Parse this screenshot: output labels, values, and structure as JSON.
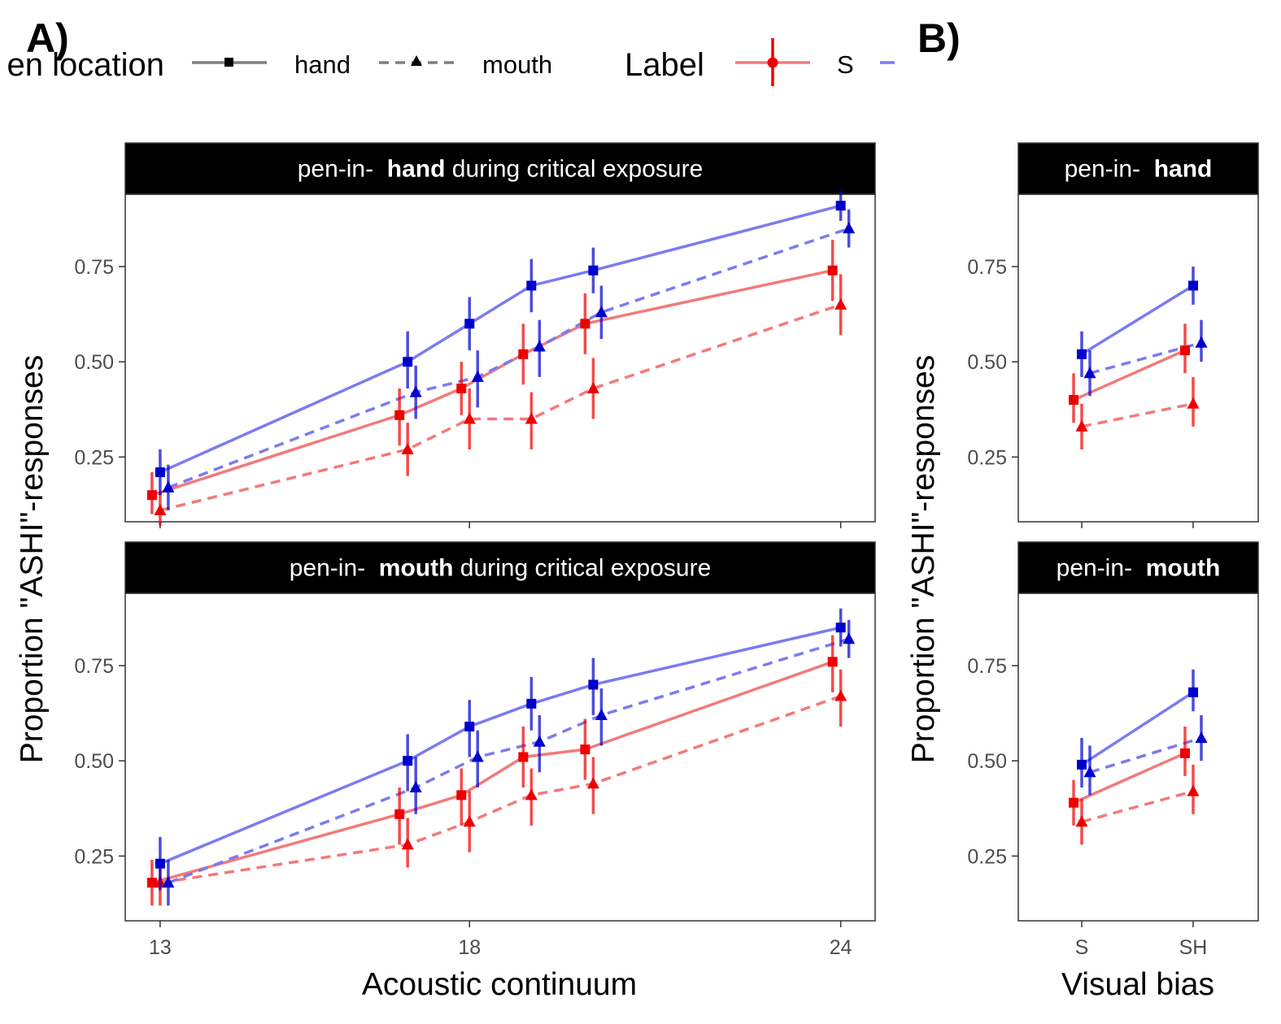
{
  "figure": {
    "panel_a_tag": "A)",
    "panel_b_tag": "B)"
  },
  "legend": {
    "pen_location": {
      "title": "en location",
      "items": [
        {
          "label": "hand",
          "shape": "square",
          "linetype": "solid"
        },
        {
          "label": "mouth",
          "shape": "triangle",
          "linetype": "dashed"
        }
      ]
    },
    "label": {
      "title": "Label",
      "items": [
        {
          "label": "S",
          "color": "#f37a7a"
        },
        {
          "label": "",
          "color": "#7b7bf1"
        }
      ]
    }
  },
  "colors": {
    "S_line": "#f37a7a",
    "SH_line": "#7b7bf1",
    "S_point": "#ee0000",
    "SH_point": "#0000cc",
    "strip_bg": "#000000",
    "strip_text": "#ffffff"
  },
  "chart_data": [
    {
      "id": "A-hand",
      "type": "line",
      "strip": {
        "prefix": "pen-in-",
        "bold": "hand",
        "suffix": " during critical exposure"
      },
      "xlabel": "Acoustic continuum",
      "ylabel": "Proportion \"ASHI\"-responses",
      "x_ticks": [
        13,
        18,
        24
      ],
      "y_ticks": [
        "0.25",
        "0.50",
        "0.75"
      ],
      "ylim": [
        0.08,
        0.94
      ],
      "series": [
        {
          "label": "S",
          "pen": "hand",
          "points": [
            {
              "x": 13,
              "y": 0.15,
              "lo": 0.1,
              "hi": 0.21
            },
            {
              "x": 17,
              "y": 0.36,
              "lo": 0.28,
              "hi": 0.43
            },
            {
              "x": 18,
              "y": 0.43,
              "lo": 0.36,
              "hi": 0.5
            },
            {
              "x": 19,
              "y": 0.52,
              "lo": 0.44,
              "hi": 0.6
            },
            {
              "x": 20,
              "y": 0.6,
              "lo": 0.52,
              "hi": 0.68
            },
            {
              "x": 24,
              "y": 0.74,
              "lo": 0.66,
              "hi": 0.82
            }
          ]
        },
        {
          "label": "S",
          "pen": "mouth",
          "points": [
            {
              "x": 13,
              "y": 0.11,
              "lo": 0.07,
              "hi": 0.16
            },
            {
              "x": 17,
              "y": 0.27,
              "lo": 0.2,
              "hi": 0.34
            },
            {
              "x": 18,
              "y": 0.35,
              "lo": 0.27,
              "hi": 0.43
            },
            {
              "x": 19,
              "y": 0.35,
              "lo": 0.27,
              "hi": 0.42
            },
            {
              "x": 20,
              "y": 0.43,
              "lo": 0.35,
              "hi": 0.51
            },
            {
              "x": 24,
              "y": 0.65,
              "lo": 0.57,
              "hi": 0.73
            }
          ]
        },
        {
          "label": "SH",
          "pen": "hand",
          "points": [
            {
              "x": 13,
              "y": 0.21,
              "lo": 0.15,
              "hi": 0.27
            },
            {
              "x": 17,
              "y": 0.5,
              "lo": 0.43,
              "hi": 0.58
            },
            {
              "x": 18,
              "y": 0.6,
              "lo": 0.53,
              "hi": 0.67
            },
            {
              "x": 19,
              "y": 0.7,
              "lo": 0.63,
              "hi": 0.77
            },
            {
              "x": 20,
              "y": 0.74,
              "lo": 0.68,
              "hi": 0.8
            },
            {
              "x": 24,
              "y": 0.91,
              "lo": 0.87,
              "hi": 0.95
            }
          ]
        },
        {
          "label": "SH",
          "pen": "mouth",
          "points": [
            {
              "x": 13,
              "y": 0.17,
              "lo": 0.11,
              "hi": 0.23
            },
            {
              "x": 17,
              "y": 0.42,
              "lo": 0.35,
              "hi": 0.49
            },
            {
              "x": 18,
              "y": 0.46,
              "lo": 0.38,
              "hi": 0.53
            },
            {
              "x": 19,
              "y": 0.54,
              "lo": 0.46,
              "hi": 0.61
            },
            {
              "x": 20,
              "y": 0.63,
              "lo": 0.56,
              "hi": 0.7
            },
            {
              "x": 24,
              "y": 0.85,
              "lo": 0.8,
              "hi": 0.9
            }
          ]
        }
      ]
    },
    {
      "id": "A-mouth",
      "type": "line",
      "strip": {
        "prefix": "pen-in-",
        "bold": "mouth",
        "suffix": " during critical exposure"
      },
      "xlabel": "Acoustic continuum",
      "ylabel": "Proportion \"ASHI\"-responses",
      "x_ticks": [
        13,
        18,
        24
      ],
      "y_ticks": [
        "0.25",
        "0.50",
        "0.75"
      ],
      "ylim": [
        0.08,
        0.94
      ],
      "series": [
        {
          "label": "S",
          "pen": "hand",
          "points": [
            {
              "x": 13,
              "y": 0.18,
              "lo": 0.12,
              "hi": 0.24
            },
            {
              "x": 17,
              "y": 0.36,
              "lo": 0.28,
              "hi": 0.43
            },
            {
              "x": 18,
              "y": 0.41,
              "lo": 0.33,
              "hi": 0.48
            },
            {
              "x": 19,
              "y": 0.51,
              "lo": 0.43,
              "hi": 0.59
            },
            {
              "x": 20,
              "y": 0.53,
              "lo": 0.45,
              "hi": 0.61
            },
            {
              "x": 24,
              "y": 0.76,
              "lo": 0.68,
              "hi": 0.83
            }
          ]
        },
        {
          "label": "S",
          "pen": "mouth",
          "points": [
            {
              "x": 13,
              "y": 0.18,
              "lo": 0.12,
              "hi": 0.24
            },
            {
              "x": 17,
              "y": 0.28,
              "lo": 0.22,
              "hi": 0.35
            },
            {
              "x": 18,
              "y": 0.34,
              "lo": 0.26,
              "hi": 0.42
            },
            {
              "x": 19,
              "y": 0.41,
              "lo": 0.33,
              "hi": 0.48
            },
            {
              "x": 20,
              "y": 0.44,
              "lo": 0.36,
              "hi": 0.51
            },
            {
              "x": 24,
              "y": 0.67,
              "lo": 0.59,
              "hi": 0.74
            }
          ]
        },
        {
          "label": "SH",
          "pen": "hand",
          "points": [
            {
              "x": 13,
              "y": 0.23,
              "lo": 0.16,
              "hi": 0.3
            },
            {
              "x": 17,
              "y": 0.5,
              "lo": 0.42,
              "hi": 0.57
            },
            {
              "x": 18,
              "y": 0.59,
              "lo": 0.51,
              "hi": 0.66
            },
            {
              "x": 19,
              "y": 0.65,
              "lo": 0.58,
              "hi": 0.72
            },
            {
              "x": 20,
              "y": 0.7,
              "lo": 0.62,
              "hi": 0.77
            },
            {
              "x": 24,
              "y": 0.85,
              "lo": 0.8,
              "hi": 0.9
            }
          ]
        },
        {
          "label": "SH",
          "pen": "mouth",
          "points": [
            {
              "x": 13,
              "y": 0.18,
              "lo": 0.12,
              "hi": 0.24
            },
            {
              "x": 17,
              "y": 0.43,
              "lo": 0.36,
              "hi": 0.51
            },
            {
              "x": 18,
              "y": 0.51,
              "lo": 0.43,
              "hi": 0.58
            },
            {
              "x": 19,
              "y": 0.55,
              "lo": 0.47,
              "hi": 0.62
            },
            {
              "x": 20,
              "y": 0.62,
              "lo": 0.54,
              "hi": 0.69
            },
            {
              "x": 24,
              "y": 0.82,
              "lo": 0.77,
              "hi": 0.87
            }
          ]
        }
      ]
    },
    {
      "id": "B-hand",
      "type": "line",
      "strip": {
        "prefix": "pen-in-",
        "bold": "hand",
        "suffix": ""
      },
      "xlabel": "Visual bias",
      "ylabel": "Proportion \"ASHI\"-responses",
      "categories": [
        "S",
        "SH"
      ],
      "y_ticks": [
        "0.25",
        "0.50",
        "0.75"
      ],
      "ylim": [
        0.08,
        0.94
      ],
      "series": [
        {
          "label": "S",
          "pen": "hand",
          "points": [
            {
              "x": "S",
              "y": 0.4,
              "lo": 0.34,
              "hi": 0.47
            },
            {
              "x": "SH",
              "y": 0.53,
              "lo": 0.47,
              "hi": 0.6
            }
          ]
        },
        {
          "label": "S",
          "pen": "mouth",
          "points": [
            {
              "x": "S",
              "y": 0.33,
              "lo": 0.27,
              "hi": 0.39
            },
            {
              "x": "SH",
              "y": 0.39,
              "lo": 0.33,
              "hi": 0.46
            }
          ]
        },
        {
          "label": "SH",
          "pen": "hand",
          "points": [
            {
              "x": "S",
              "y": 0.52,
              "lo": 0.46,
              "hi": 0.58
            },
            {
              "x": "SH",
              "y": 0.7,
              "lo": 0.65,
              "hi": 0.75
            }
          ]
        },
        {
          "label": "SH",
          "pen": "mouth",
          "points": [
            {
              "x": "S",
              "y": 0.47,
              "lo": 0.41,
              "hi": 0.53
            },
            {
              "x": "SH",
              "y": 0.55,
              "lo": 0.5,
              "hi": 0.61
            }
          ]
        }
      ]
    },
    {
      "id": "B-mouth",
      "type": "line",
      "strip": {
        "prefix": "pen-in-",
        "bold": "mouth",
        "suffix": ""
      },
      "xlabel": "Visual bias",
      "ylabel": "Proportion \"ASHI\"-responses",
      "categories": [
        "S",
        "SH"
      ],
      "y_ticks": [
        "0.25",
        "0.50",
        "0.75"
      ],
      "ylim": [
        0.08,
        0.94
      ],
      "series": [
        {
          "label": "S",
          "pen": "hand",
          "points": [
            {
              "x": "S",
              "y": 0.39,
              "lo": 0.33,
              "hi": 0.45
            },
            {
              "x": "SH",
              "y": 0.52,
              "lo": 0.46,
              "hi": 0.59
            }
          ]
        },
        {
          "label": "S",
          "pen": "mouth",
          "points": [
            {
              "x": "S",
              "y": 0.34,
              "lo": 0.28,
              "hi": 0.4
            },
            {
              "x": "SH",
              "y": 0.42,
              "lo": 0.36,
              "hi": 0.49
            }
          ]
        },
        {
          "label": "SH",
          "pen": "hand",
          "points": [
            {
              "x": "S",
              "y": 0.49,
              "lo": 0.43,
              "hi": 0.56
            },
            {
              "x": "SH",
              "y": 0.68,
              "lo": 0.63,
              "hi": 0.74
            }
          ]
        },
        {
          "label": "SH",
          "pen": "mouth",
          "points": [
            {
              "x": "S",
              "y": 0.47,
              "lo": 0.41,
              "hi": 0.54
            },
            {
              "x": "SH",
              "y": 0.56,
              "lo": 0.5,
              "hi": 0.62
            }
          ]
        }
      ]
    }
  ]
}
